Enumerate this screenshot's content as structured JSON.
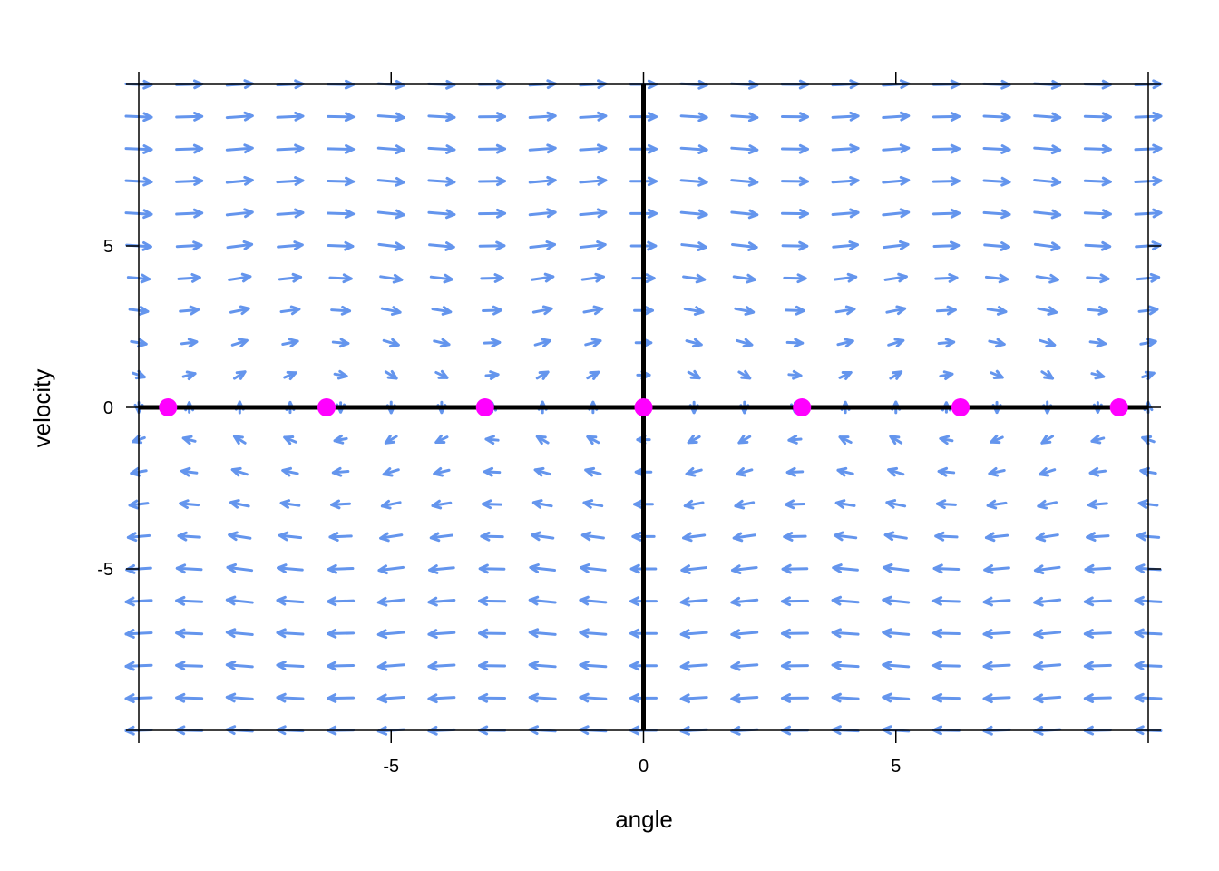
{
  "chart_data": {
    "type": "scatter",
    "subtype": "vector-field",
    "xlabel": "angle",
    "ylabel": "velocity",
    "xlim": [
      -10,
      10
    ],
    "ylim": [
      -10,
      10
    ],
    "x_ticks": [
      -5,
      0,
      5
    ],
    "y_ticks": [
      -5,
      0,
      5
    ],
    "x_tick_labels": [
      "-5",
      "0",
      "5"
    ],
    "y_tick_labels": [
      "-5",
      "0",
      "5"
    ],
    "field": {
      "equation_dx": "velocity",
      "equation_dy": "-sin(angle)",
      "x_values": [
        -10,
        -9,
        -8,
        -7,
        -6,
        -5,
        -4,
        -3,
        -2,
        -1,
        0,
        1,
        2,
        3,
        4,
        5,
        6,
        7,
        8,
        9,
        10
      ],
      "y_values": [
        -10,
        -9,
        -8,
        -7,
        -6,
        -5,
        -4,
        -3,
        -2,
        -1,
        0,
        1,
        2,
        3,
        4,
        5,
        6,
        7,
        8,
        9,
        10
      ],
      "color": "#6495ED"
    },
    "reference_lines": [
      {
        "orientation": "horizontal",
        "value": 0,
        "color": "#000000"
      },
      {
        "orientation": "vertical",
        "value": 0,
        "color": "#000000"
      }
    ],
    "series": [
      {
        "x": [
          -9.42,
          -6.28,
          -3.14,
          0,
          3.14,
          6.28,
          9.42
        ],
        "y": [
          0,
          0,
          0,
          0,
          0,
          0,
          0
        ],
        "color": "#FF00FF"
      }
    ],
    "grid": false
  }
}
